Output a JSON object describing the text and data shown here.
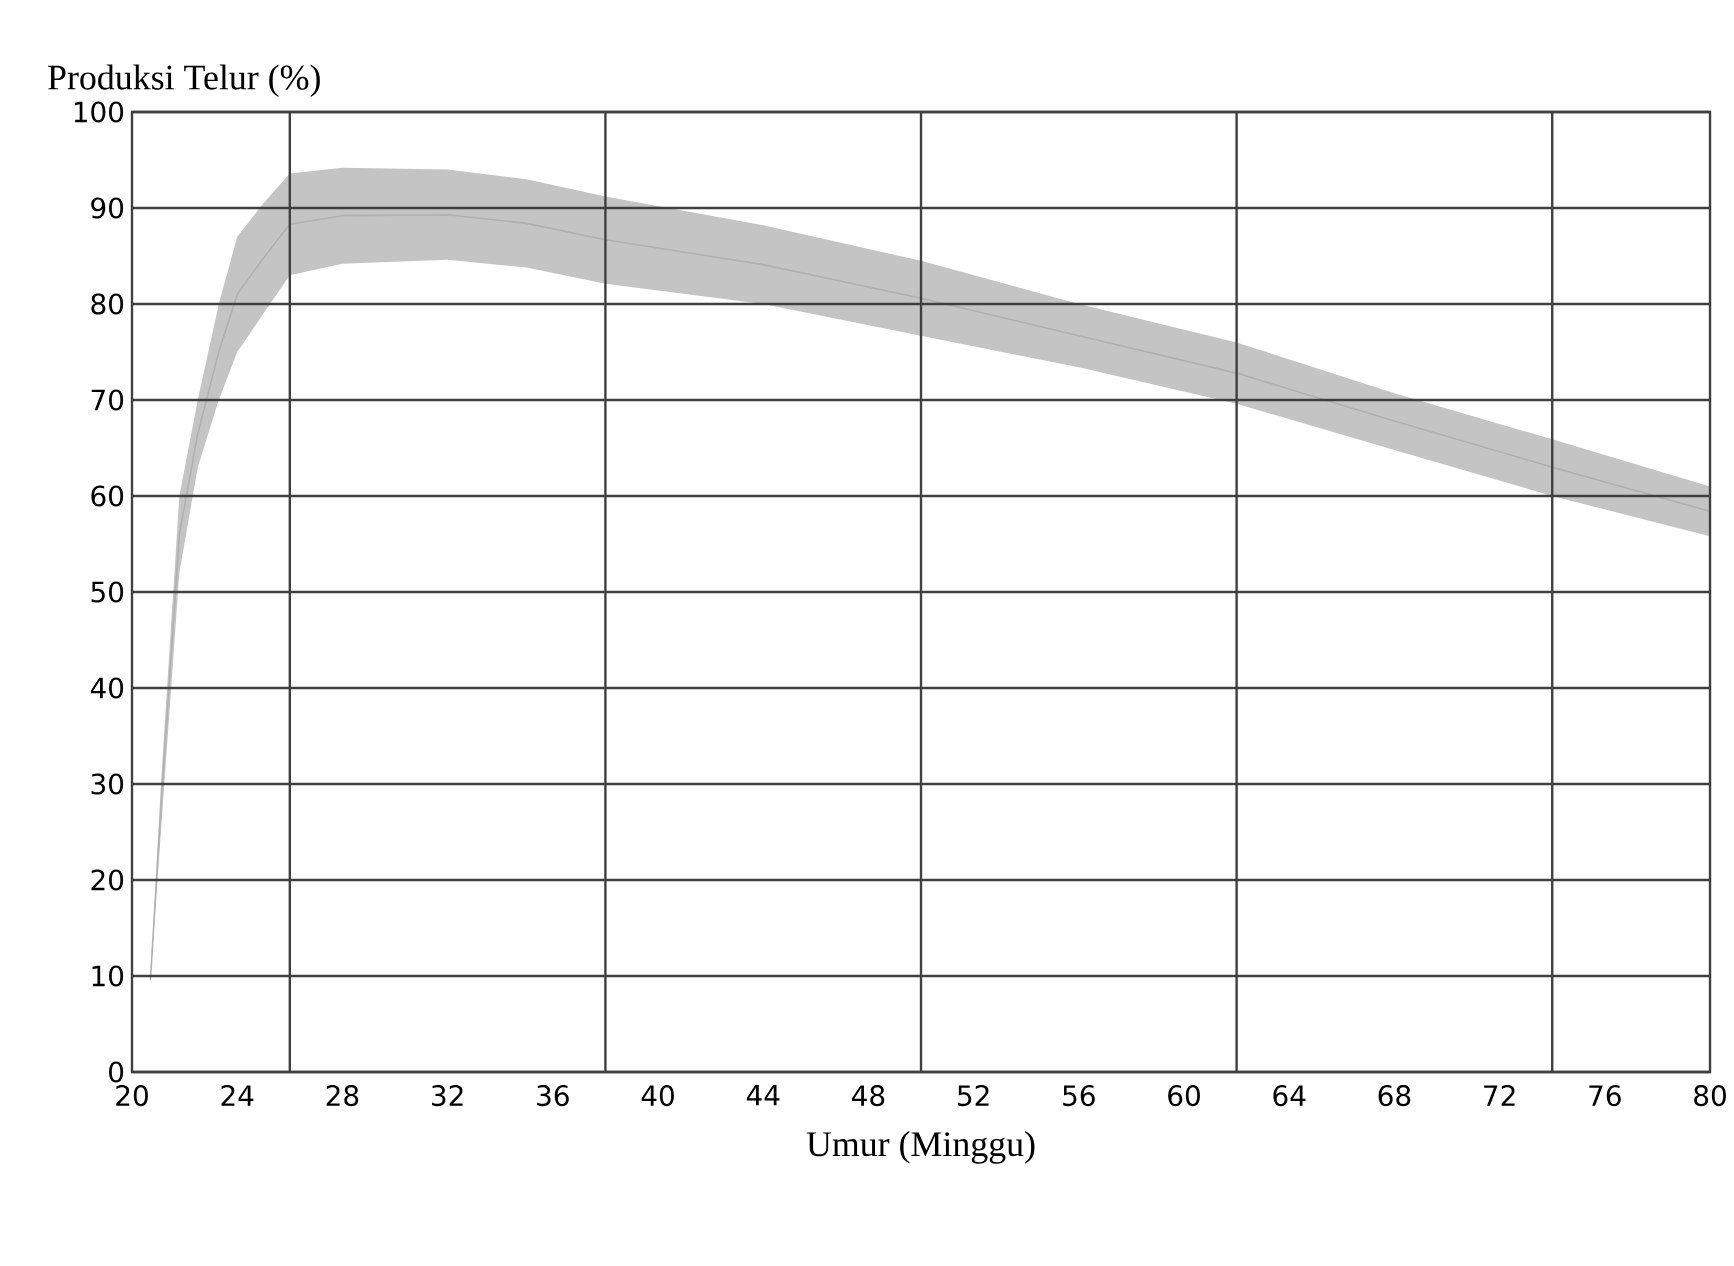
{
  "chart_data": {
    "type": "line",
    "ylabel": "Produksi Telur (%)",
    "xlabel": "Umur (Minggu)",
    "xlim": [
      20,
      80
    ],
    "ylim": [
      0,
      100
    ],
    "xticks": [
      20,
      24,
      {
        "value": 26,
        "label": null
      },
      28,
      32,
      36,
      {
        "value": 38,
        "label": null
      },
      40,
      44,
      48,
      {
        "value": 50,
        "label": null
      },
      52,
      56,
      60,
      {
        "value": 62,
        "label": null
      },
      64,
      68,
      72,
      {
        "value": 74,
        "label": null
      },
      76,
      80
    ],
    "yticks": [
      0,
      10,
      20,
      30,
      40,
      50,
      60,
      70,
      80,
      90,
      100
    ],
    "grid": true,
    "series": [
      {
        "color": "#b0b0b0",
        "x": [
          20.7,
          21.1,
          21.8,
          22.5,
          23.3,
          24,
          25,
          26,
          28,
          32,
          35,
          38,
          44,
          50,
          56,
          62,
          68,
          74,
          80
        ],
        "lower": [
          9.6,
          25,
          52,
          63,
          70,
          75,
          79,
          83,
          84.2,
          84.6,
          83.8,
          82.1,
          80,
          76.7,
          73.4,
          69.6,
          64.8,
          60,
          55.8
        ],
        "values": [
          9.6,
          27.5,
          56,
          66.5,
          75,
          81,
          84.8,
          88.3,
          89.2,
          89.3,
          88.4,
          86.7,
          84.1,
          80.6,
          76.7,
          72.8,
          67.8,
          63,
          58.4
        ],
        "upper": [
          9.6,
          30,
          60,
          70,
          80,
          87,
          90.5,
          93.6,
          94.2,
          94,
          93,
          91.2,
          88.2,
          84.5,
          80,
          76,
          70.7,
          65.9,
          61
        ]
      }
    ]
  }
}
